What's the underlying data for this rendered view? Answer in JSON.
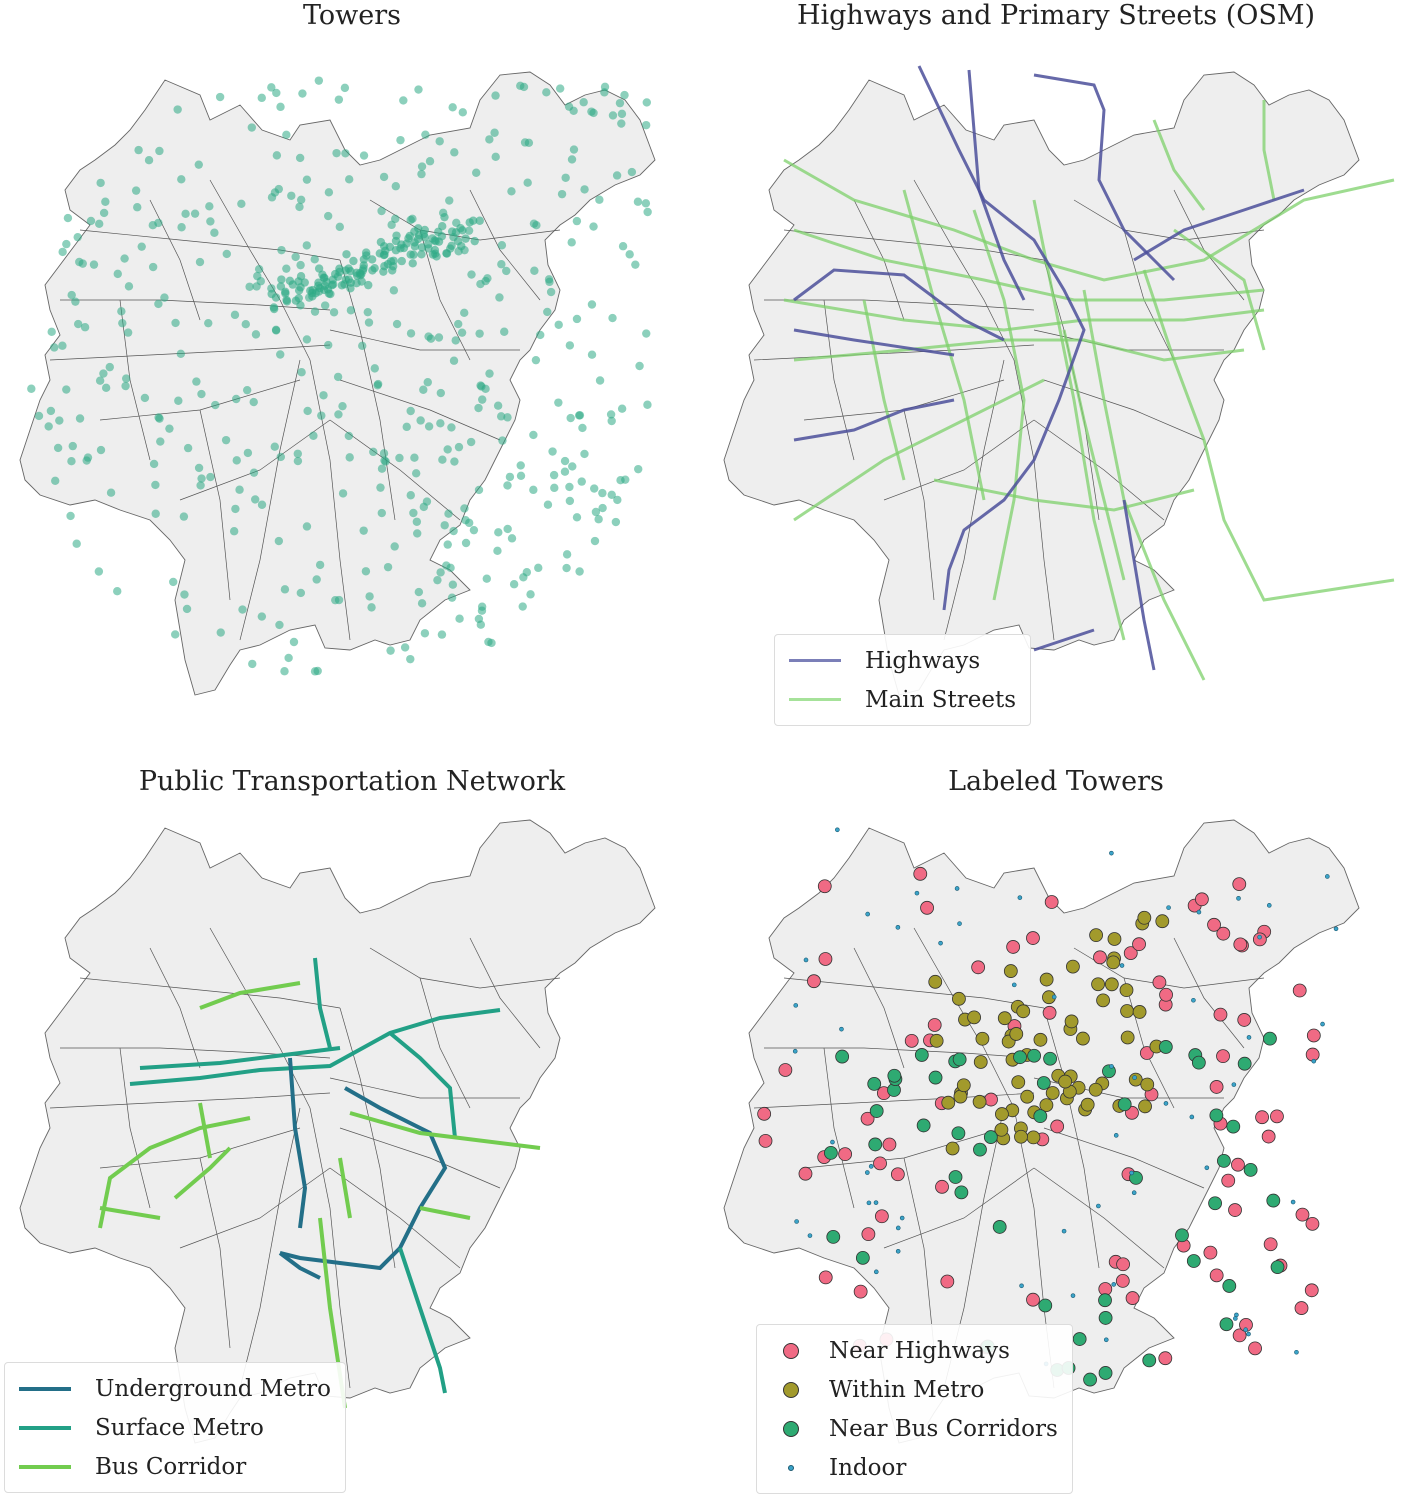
{
  "panels": {
    "towers": {
      "title": "Towers"
    },
    "osm": {
      "title": "Highways and Primary Streets (OSM)",
      "legend": [
        {
          "label": "Highways",
          "color": "#4b4f9a"
        },
        {
          "label": "Main Streets",
          "color": "#7ed06b"
        }
      ]
    },
    "transport": {
      "title": "Public Transportation Network",
      "legend": [
        {
          "label": "Underground Metro",
          "color": "#236f88"
        },
        {
          "label": "Surface Metro",
          "color": "#22a086"
        },
        {
          "label": "Bus Corridor",
          "color": "#72cc4f"
        }
      ]
    },
    "labeled": {
      "title": "Labeled Towers",
      "legend": [
        {
          "label": "Near Highways",
          "color": "#f06a84"
        },
        {
          "label": "Within Metro",
          "color": "#a29a2c"
        },
        {
          "label": "Near Bus Corridors",
          "color": "#2eaa72"
        },
        {
          "label": "Indoor",
          "color": "#3ba3c8"
        }
      ]
    }
  },
  "colors": {
    "region_fill": "#eeeeee",
    "region_stroke": "#666666",
    "tower": "#2eaa85"
  }
}
